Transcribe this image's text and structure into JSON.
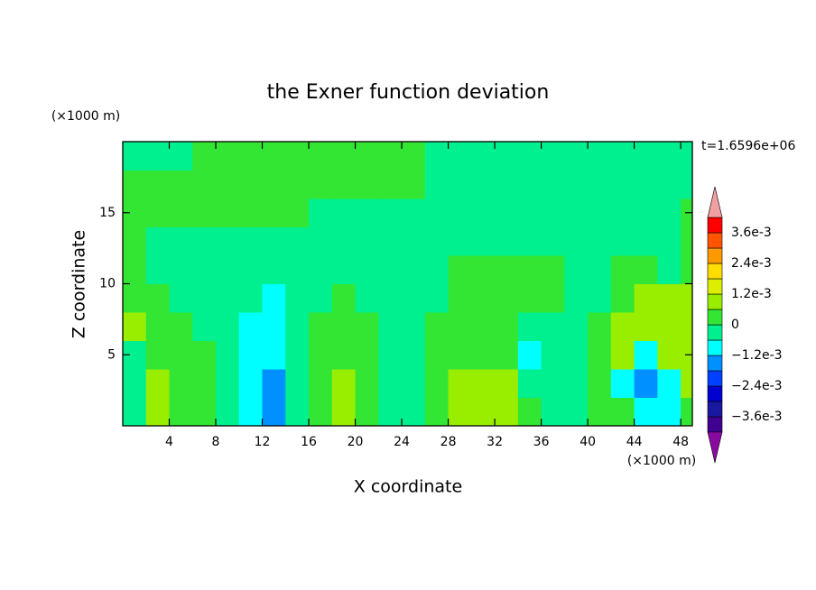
{
  "chart_data": {
    "type": "contour",
    "title": "the Exner function deviation",
    "x_label": "X coordinate",
    "y_label": "Z coordinate",
    "x_unit": "(×1000 m)",
    "y_unit": "(×1000 m)",
    "annotation": "t=1.6596e+06",
    "xlim": [
      0,
      49
    ],
    "ylim": [
      0,
      20
    ],
    "xticks": [
      4,
      8,
      12,
      16,
      20,
      24,
      28,
      32,
      36,
      40,
      44,
      48
    ],
    "yticks": [
      5,
      10,
      15
    ],
    "x": [
      1,
      3,
      5,
      7,
      9,
      11,
      13,
      15,
      17,
      19,
      21,
      23,
      25,
      27,
      29,
      31,
      33,
      35,
      37,
      39,
      41,
      43,
      45,
      47,
      49
    ],
    "y": [
      1,
      3,
      5,
      7,
      9,
      11,
      13,
      15,
      17,
      19
    ],
    "z": [
      [
        -0.0003,
        0.0009,
        0.0003,
        0.0003,
        -0.0003,
        -0.0009,
        -0.0015,
        -0.0003,
        0.0003,
        0.0009,
        0.0003,
        -0.0003,
        -0.0003,
        0.0003,
        0.0009,
        0.0009,
        0.0009,
        0.0003,
        -0.0003,
        -0.0003,
        0.0003,
        0.0003,
        -0.0009,
        -0.0009,
        0.0003
      ],
      [
        -0.0003,
        0.0009,
        0.0003,
        0.0003,
        -0.0003,
        -0.0009,
        -0.0015,
        -0.0003,
        0.0003,
        0.0009,
        0.0003,
        -0.0003,
        -0.0003,
        0.0003,
        0.0009,
        0.0009,
        0.0009,
        -0.0003,
        -0.0003,
        -0.0003,
        0.0003,
        -0.0009,
        -0.0015,
        -0.0009,
        0.0009
      ],
      [
        -0.0003,
        0.0003,
        0.0003,
        0.0003,
        -0.0003,
        -0.0009,
        -0.0009,
        -0.0003,
        0.0003,
        0.0003,
        0.0003,
        -0.0003,
        -0.0003,
        0.0003,
        0.0003,
        0.0003,
        0.0003,
        -0.0009,
        -0.0003,
        -0.0003,
        0.0003,
        0.0009,
        -0.0009,
        0.0009,
        0.0009
      ],
      [
        0.0009,
        0.0003,
        0.0003,
        -0.0003,
        -0.0003,
        -0.0009,
        -0.0009,
        -0.0003,
        0.0003,
        0.0003,
        0.0003,
        -0.0003,
        -0.0003,
        0.0003,
        0.0003,
        0.0003,
        0.0003,
        -0.0003,
        -0.0003,
        -0.0003,
        0.0003,
        0.0009,
        0.0009,
        0.0009,
        0.0009
      ],
      [
        0.0003,
        0.0003,
        -0.0003,
        -0.0003,
        -0.0003,
        -0.0003,
        -0.0009,
        -0.0003,
        -0.0003,
        0.0003,
        -0.0003,
        -0.0003,
        -0.0003,
        -0.0003,
        0.0003,
        0.0003,
        0.0003,
        0.0003,
        0.0003,
        -0.0003,
        -0.0003,
        0.0003,
        0.0009,
        0.0009,
        0.0009
      ],
      [
        0.0003,
        -0.0003,
        -0.0003,
        -0.0003,
        -0.0003,
        -0.0003,
        -0.0003,
        -0.0003,
        -0.0003,
        -0.0003,
        -0.0003,
        -0.0003,
        -0.0003,
        -0.0003,
        0.0003,
        0.0003,
        0.0003,
        0.0003,
        0.0003,
        -0.0003,
        -0.0003,
        0.0003,
        0.0003,
        -0.0003,
        0.0003
      ],
      [
        0.0003,
        -0.0003,
        -0.0003,
        -0.0003,
        -0.0003,
        -0.0003,
        -0.0003,
        -0.0003,
        -0.0003,
        -0.0003,
        -0.0003,
        -0.0003,
        -0.0003,
        -0.0003,
        -0.0003,
        -0.0003,
        -0.0003,
        -0.0003,
        -0.0003,
        -0.0003,
        -0.0003,
        -0.0003,
        -0.0003,
        -0.0003,
        0.0003
      ],
      [
        0.0003,
        0.0003,
        0.0003,
        0.0003,
        0.0003,
        0.0003,
        0.0003,
        0.0003,
        -0.0003,
        -0.0003,
        -0.0003,
        -0.0003,
        -0.0003,
        -0.0003,
        -0.0003,
        -0.0003,
        -0.0003,
        -0.0003,
        -0.0003,
        -0.0003,
        -0.0003,
        -0.0003,
        -0.0003,
        -0.0003,
        0.0003
      ],
      [
        0.0003,
        0.0003,
        0.0003,
        0.0003,
        0.0003,
        0.0003,
        0.0003,
        0.0003,
        0.0003,
        0.0003,
        0.0003,
        0.0003,
        0.0003,
        -0.0003,
        -0.0003,
        -0.0003,
        -0.0003,
        -0.0003,
        -0.0003,
        -0.0003,
        -0.0003,
        -0.0003,
        -0.0003,
        -0.0003,
        -0.0003
      ],
      [
        -0.0003,
        -0.0003,
        -0.0003,
        0.0003,
        0.0003,
        0.0003,
        0.0003,
        0.0003,
        0.0003,
        0.0003,
        0.0003,
        0.0003,
        0.0003,
        -0.0003,
        -0.0003,
        -0.0003,
        -0.0003,
        -0.0003,
        -0.0003,
        -0.0003,
        -0.0003,
        -0.0003,
        -0.0003,
        -0.0003,
        -0.0003
      ]
    ],
    "levels": [
      -0.0042,
      -0.0036,
      -0.003,
      -0.0024,
      -0.0018,
      -0.0012,
      -0.0006,
      0,
      0.0006,
      0.0012,
      0.0018,
      0.0024,
      0.003,
      0.0036,
      0.0042
    ],
    "colors": [
      "#400090",
      "#1818a0",
      "#0000d0",
      "#0040ff",
      "#0090ff",
      "#00ffff",
      "#00f090",
      "#33e633",
      "#99ee00",
      "#ddee00",
      "#ffdd00",
      "#ff9900",
      "#ff5500",
      "#ff0000"
    ],
    "under_color": "#8a0aa0",
    "over_color": "#f0a0a0",
    "colorbar_ticks": [
      {
        "value": 0.0036,
        "label": "3.6e-3"
      },
      {
        "value": 0.0024,
        "label": "2.4e-3"
      },
      {
        "value": 0.0012,
        "label": "1.2e-3"
      },
      0,
      {
        "value": -0.0012,
        "label": "−1.2e-3"
      },
      {
        "value": -0.0024,
        "label": "−2.4e-3"
      },
      {
        "value": -0.0036,
        "label": "−3.6e-3"
      }
    ]
  }
}
